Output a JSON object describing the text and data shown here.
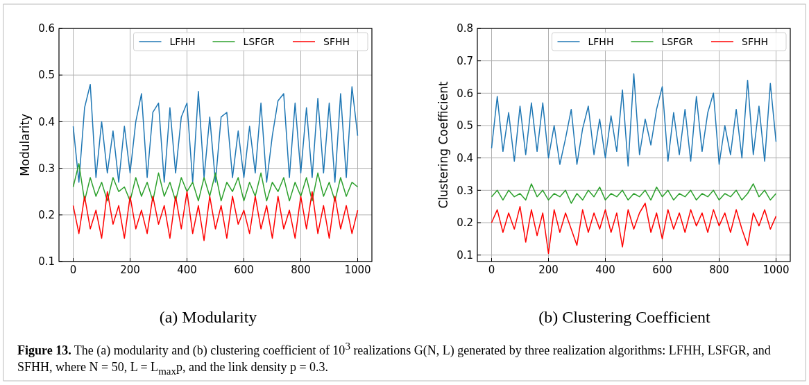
{
  "chart_data": [
    {
      "type": "line",
      "ylabel": "Modularity",
      "xlim": [
        -50,
        1050
      ],
      "ylim": [
        0.1,
        0.6
      ],
      "xticks": [
        0,
        200,
        400,
        600,
        800,
        1000
      ],
      "yticks": [
        0.1,
        0.2,
        0.3,
        0.4,
        0.5,
        0.6
      ],
      "grid": true,
      "legend": "top right",
      "x": [
        0,
        20,
        40,
        60,
        80,
        100,
        120,
        140,
        160,
        180,
        200,
        220,
        240,
        260,
        280,
        300,
        320,
        340,
        360,
        380,
        400,
        420,
        440,
        460,
        480,
        500,
        520,
        540,
        560,
        580,
        600,
        620,
        640,
        660,
        680,
        700,
        720,
        740,
        760,
        780,
        800,
        820,
        840,
        860,
        880,
        900,
        920,
        940,
        960,
        980,
        1000
      ],
      "annotations": [
        "(a) Modularity"
      ],
      "series": [
        {
          "name": "LFHH",
          "color": "#1f77b4",
          "values": [
            0.39,
            0.27,
            0.43,
            0.48,
            0.28,
            0.4,
            0.29,
            0.38,
            0.27,
            0.39,
            0.29,
            0.4,
            0.46,
            0.28,
            0.42,
            0.44,
            0.27,
            0.43,
            0.29,
            0.41,
            0.44,
            0.27,
            0.465,
            0.28,
            0.41,
            0.27,
            0.41,
            0.42,
            0.28,
            0.38,
            0.28,
            0.39,
            0.29,
            0.44,
            0.27,
            0.37,
            0.445,
            0.46,
            0.28,
            0.44,
            0.29,
            0.43,
            0.28,
            0.45,
            0.29,
            0.44,
            0.27,
            0.46,
            0.28,
            0.475,
            0.37
          ]
        },
        {
          "name": "LSFGR",
          "color": "#2ca02c",
          "values": [
            0.26,
            0.31,
            0.23,
            0.28,
            0.24,
            0.27,
            0.23,
            0.28,
            0.25,
            0.26,
            0.23,
            0.28,
            0.24,
            0.27,
            0.23,
            0.29,
            0.24,
            0.27,
            0.23,
            0.28,
            0.25,
            0.27,
            0.23,
            0.28,
            0.24,
            0.29,
            0.23,
            0.27,
            0.25,
            0.28,
            0.23,
            0.27,
            0.24,
            0.29,
            0.23,
            0.27,
            0.25,
            0.28,
            0.23,
            0.27,
            0.24,
            0.28,
            0.23,
            0.29,
            0.24,
            0.27,
            0.23,
            0.28,
            0.24,
            0.27,
            0.26
          ]
        },
        {
          "name": "SFHH",
          "color": "#ff0000",
          "values": [
            0.22,
            0.16,
            0.24,
            0.17,
            0.21,
            0.15,
            0.25,
            0.18,
            0.22,
            0.15,
            0.24,
            0.17,
            0.21,
            0.16,
            0.24,
            0.18,
            0.22,
            0.15,
            0.24,
            0.17,
            0.25,
            0.16,
            0.22,
            0.145,
            0.24,
            0.17,
            0.22,
            0.15,
            0.24,
            0.18,
            0.21,
            0.16,
            0.24,
            0.17,
            0.22,
            0.15,
            0.24,
            0.17,
            0.21,
            0.15,
            0.24,
            0.17,
            0.25,
            0.16,
            0.22,
            0.15,
            0.24,
            0.17,
            0.22,
            0.16,
            0.21
          ]
        }
      ]
    },
    {
      "type": "line",
      "ylabel": "Clustering Coefficient",
      "xlim": [
        -50,
        1050
      ],
      "ylim": [
        0.08,
        0.8
      ],
      "xticks": [
        0,
        200,
        400,
        600,
        800,
        1000
      ],
      "yticks": [
        0.1,
        0.2,
        0.3,
        0.4,
        0.5,
        0.6,
        0.7,
        0.8
      ],
      "grid": true,
      "legend": "top right",
      "x": [
        0,
        20,
        40,
        60,
        80,
        100,
        120,
        140,
        160,
        180,
        200,
        220,
        240,
        260,
        280,
        300,
        320,
        340,
        360,
        380,
        400,
        420,
        440,
        460,
        480,
        500,
        520,
        540,
        560,
        580,
        600,
        620,
        640,
        660,
        680,
        700,
        720,
        740,
        760,
        780,
        800,
        820,
        840,
        860,
        880,
        900,
        920,
        940,
        960,
        980,
        1000
      ],
      "annotations": [
        "(b) Clustering Coefficient",
        "Figure 13. The (a) modularity and (b) clustering coefficient of 10$^{3}$ realizations G(N, L) generated by three realization algorithms: LFHH, LSFGR, and SFHH, where N = 50, L = L$_{max}$p, and the link density p = 0.3."
      ],
      "series": [
        {
          "name": "LFHH",
          "color": "#1f77b4",
          "values": [
            0.43,
            0.59,
            0.42,
            0.54,
            0.39,
            0.56,
            0.41,
            0.57,
            0.42,
            0.57,
            0.4,
            0.5,
            0.38,
            0.46,
            0.55,
            0.38,
            0.49,
            0.56,
            0.41,
            0.52,
            0.4,
            0.53,
            0.42,
            0.61,
            0.375,
            0.66,
            0.41,
            0.52,
            0.44,
            0.55,
            0.62,
            0.39,
            0.54,
            0.41,
            0.55,
            0.39,
            0.59,
            0.42,
            0.54,
            0.6,
            0.38,
            0.5,
            0.41,
            0.55,
            0.4,
            0.64,
            0.41,
            0.56,
            0.39,
            0.63,
            0.45
          ]
        },
        {
          "name": "LSFGR",
          "color": "#2ca02c",
          "values": [
            0.28,
            0.3,
            0.27,
            0.3,
            0.28,
            0.29,
            0.27,
            0.32,
            0.28,
            0.3,
            0.27,
            0.29,
            0.28,
            0.3,
            0.26,
            0.29,
            0.27,
            0.3,
            0.28,
            0.31,
            0.27,
            0.29,
            0.28,
            0.3,
            0.27,
            0.29,
            0.28,
            0.3,
            0.27,
            0.31,
            0.28,
            0.3,
            0.27,
            0.29,
            0.28,
            0.3,
            0.27,
            0.29,
            0.28,
            0.3,
            0.27,
            0.29,
            0.28,
            0.3,
            0.27,
            0.29,
            0.32,
            0.28,
            0.3,
            0.27,
            0.29
          ]
        },
        {
          "name": "SFHH",
          "color": "#ff0000",
          "values": [
            0.2,
            0.24,
            0.17,
            0.23,
            0.18,
            0.25,
            0.14,
            0.24,
            0.16,
            0.23,
            0.105,
            0.24,
            0.17,
            0.23,
            0.18,
            0.13,
            0.24,
            0.17,
            0.23,
            0.18,
            0.24,
            0.17,
            0.23,
            0.125,
            0.24,
            0.18,
            0.23,
            0.26,
            0.17,
            0.23,
            0.15,
            0.24,
            0.18,
            0.23,
            0.17,
            0.24,
            0.19,
            0.23,
            0.17,
            0.24,
            0.19,
            0.23,
            0.17,
            0.24,
            0.18,
            0.13,
            0.23,
            0.19,
            0.24,
            0.18,
            0.22
          ]
        }
      ]
    }
  ]
}
